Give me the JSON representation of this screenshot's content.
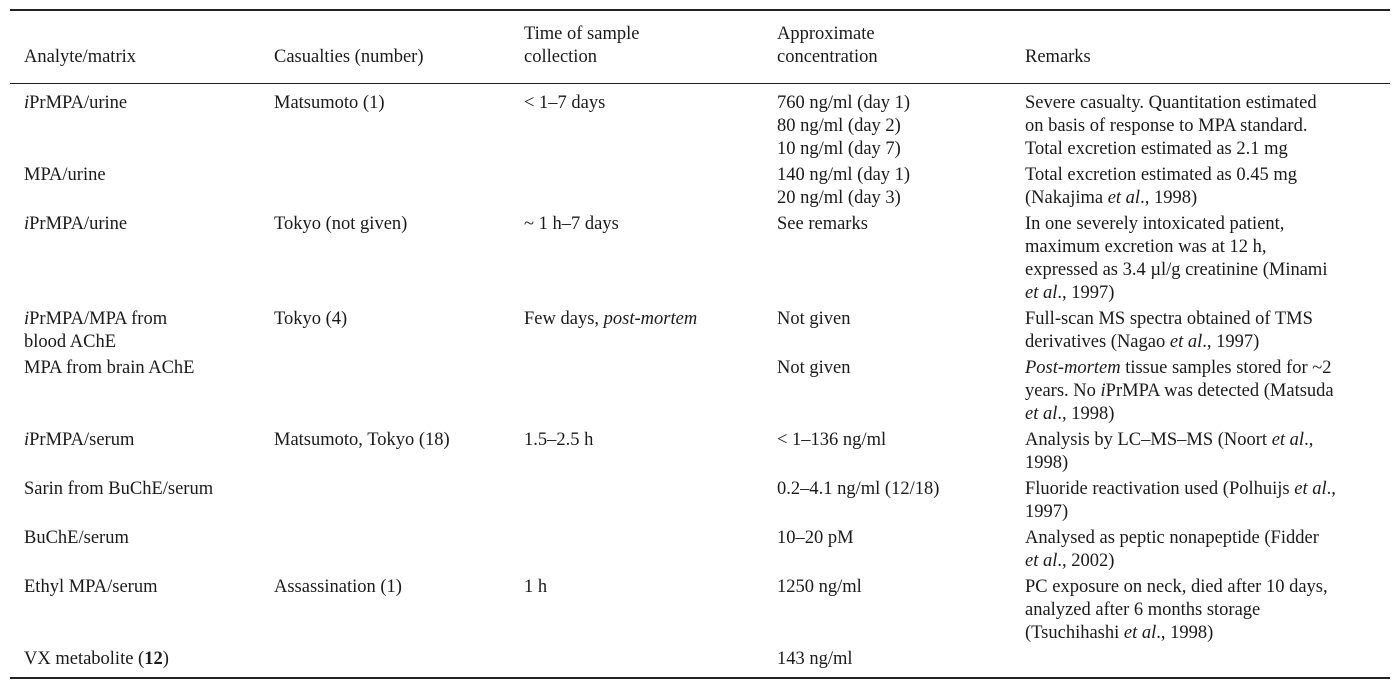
{
  "columns": [
    [
      "Analyte/matrix"
    ],
    [
      "Casualties (number)"
    ],
    [
      "Time of sample",
      "collection"
    ],
    [
      "Approximate",
      "concentration"
    ],
    [
      "Remarks"
    ]
  ],
  "rows": [
    {
      "analyte": [
        [
          [
            "i",
            "i"
          ],
          [
            "t",
            "PrMPA/urine"
          ]
        ]
      ],
      "casualties": [
        [
          [
            "t",
            "Matsumoto (1)"
          ]
        ]
      ],
      "time": [
        [
          [
            "t",
            "< 1–7 days"
          ]
        ]
      ],
      "concentration": [
        [
          [
            "t",
            "760 ng/ml (day 1)"
          ]
        ],
        [
          [
            "t",
            "80 ng/ml (day 2)"
          ]
        ],
        [
          [
            "t",
            "10 ng/ml (day 7)"
          ]
        ]
      ],
      "remarks": [
        [
          [
            "t",
            "Severe casualty. Quantitation estimated"
          ]
        ],
        [
          [
            "t",
            "on basis of response to MPA standard."
          ]
        ],
        [
          [
            "t",
            "Total excretion estimated as 2.1 mg"
          ]
        ]
      ]
    },
    {
      "analyte": [
        [
          [
            "t",
            "MPA/urine"
          ]
        ]
      ],
      "casualties": [],
      "time": [],
      "concentration": [
        [
          [
            "t",
            "140 ng/ml (day 1)"
          ]
        ],
        [
          [
            "t",
            "20 ng/ml (day 3)"
          ]
        ]
      ],
      "remarks": [
        [
          [
            "t",
            "Total excretion estimated as 0.45 mg"
          ]
        ],
        [
          [
            "t",
            "(Nakajima "
          ],
          [
            "i",
            "et al"
          ],
          [
            "t",
            "., 1998)"
          ]
        ]
      ]
    },
    {
      "analyte": [
        [
          [
            "i",
            "i"
          ],
          [
            "t",
            "PrMPA/urine"
          ]
        ]
      ],
      "casualties": [
        [
          [
            "t",
            "Tokyo (not given)"
          ]
        ]
      ],
      "time": [
        [
          [
            "t",
            "~ 1 h–7 days"
          ]
        ]
      ],
      "concentration": [
        [
          [
            "t",
            "See remarks"
          ]
        ]
      ],
      "remarks": [
        [
          [
            "t",
            "In one severely intoxicated patient,"
          ]
        ],
        [
          [
            "t",
            "maximum excretion was at 12 h,"
          ]
        ],
        [
          [
            "t",
            "expressed as 3.4 µl/g creatinine (Minami"
          ]
        ],
        [
          [
            "i",
            "et al"
          ],
          [
            "t",
            "., 1997)"
          ]
        ]
      ]
    },
    {
      "analyte": [
        [
          [
            "i",
            "i"
          ],
          [
            "t",
            "PrMPA/MPA from"
          ]
        ],
        [
          [
            "t",
            "blood AChE"
          ]
        ]
      ],
      "casualties": [
        [
          [
            "t",
            "Tokyo (4)"
          ]
        ]
      ],
      "time": [
        [
          [
            "t",
            "Few days, "
          ],
          [
            "i",
            "post-mortem"
          ]
        ]
      ],
      "concentration": [
        [
          [
            "t",
            "Not given"
          ]
        ]
      ],
      "remarks": [
        [
          [
            "t",
            "Full-scan MS spectra obtained of TMS"
          ]
        ],
        [
          [
            "t",
            "derivatives (Nagao "
          ],
          [
            "i",
            "et al"
          ],
          [
            "t",
            "., 1997)"
          ]
        ]
      ]
    },
    {
      "analyte": [
        [
          [
            "t",
            "MPA from brain AChE"
          ]
        ]
      ],
      "casualties": [],
      "time": [],
      "concentration": [
        [
          [
            "t",
            "Not given"
          ]
        ]
      ],
      "remarks": [
        [
          [
            "i",
            "Post-mortem"
          ],
          [
            "t",
            " tissue samples stored for ~2"
          ]
        ],
        [
          [
            "t",
            "years. No "
          ],
          [
            "i",
            "i"
          ],
          [
            "t",
            "PrMPA was detected (Matsuda"
          ]
        ],
        [
          [
            "i",
            "et al"
          ],
          [
            "t",
            "., 1998)"
          ]
        ]
      ]
    },
    {
      "analyte": [
        [
          [
            "i",
            "i"
          ],
          [
            "t",
            "PrMPA/serum"
          ]
        ]
      ],
      "casualties": [
        [
          [
            "t",
            "Matsumoto, Tokyo (18)"
          ]
        ]
      ],
      "time": [
        [
          [
            "t",
            "1.5–2.5 h"
          ]
        ]
      ],
      "concentration": [
        [
          [
            "t",
            "< 1–136 ng/ml"
          ]
        ]
      ],
      "remarks": [
        [
          [
            "t",
            "Analysis by LC–MS–MS (Noort "
          ],
          [
            "i",
            "et al"
          ],
          [
            "t",
            ".,"
          ]
        ],
        [
          [
            "t",
            "1998)"
          ]
        ]
      ]
    },
    {
      "analyte": [
        [
          [
            "t",
            "Sarin from BuChE/serum"
          ]
        ]
      ],
      "casualties": [],
      "time": [],
      "concentration": [
        [
          [
            "t",
            "0.2–4.1 ng/ml (12/18)"
          ]
        ]
      ],
      "remarks": [
        [
          [
            "t",
            "Fluoride reactivation used (Polhuijs "
          ],
          [
            "i",
            "et al"
          ],
          [
            "t",
            ".,"
          ]
        ],
        [
          [
            "t",
            "1997)"
          ]
        ]
      ]
    },
    {
      "analyte": [
        [
          [
            "t",
            "BuChE/serum"
          ]
        ]
      ],
      "casualties": [],
      "time": [],
      "concentration": [
        [
          [
            "t",
            "10–20 pM"
          ]
        ]
      ],
      "remarks": [
        [
          [
            "t",
            "Analysed as peptic nonapeptide (Fidder"
          ]
        ],
        [
          [
            "i",
            "et al"
          ],
          [
            "t",
            "., 2002)"
          ]
        ]
      ]
    },
    {
      "analyte": [
        [
          [
            "t",
            "Ethyl MPA/serum"
          ]
        ]
      ],
      "casualties": [
        [
          [
            "t",
            "Assassination (1)"
          ]
        ]
      ],
      "time": [
        [
          [
            "t",
            "1 h"
          ]
        ]
      ],
      "concentration": [
        [
          [
            "t",
            "1250 ng/ml"
          ]
        ]
      ],
      "remarks": [
        [
          [
            "t",
            "PC exposure on neck, died after 10 days,"
          ]
        ],
        [
          [
            "t",
            "analyzed after 6 months storage"
          ]
        ],
        [
          [
            "t",
            "(Tsuchihashi "
          ],
          [
            "i",
            "et al"
          ],
          [
            "t",
            "., 1998)"
          ]
        ]
      ]
    },
    {
      "analyte": [
        [
          [
            "t",
            "VX metabolite ("
          ],
          [
            "b",
            "12"
          ],
          [
            "t",
            ")"
          ]
        ]
      ],
      "casualties": [],
      "time": [],
      "concentration": [
        [
          [
            "t",
            "143 ng/ml"
          ]
        ]
      ],
      "remarks": []
    }
  ]
}
